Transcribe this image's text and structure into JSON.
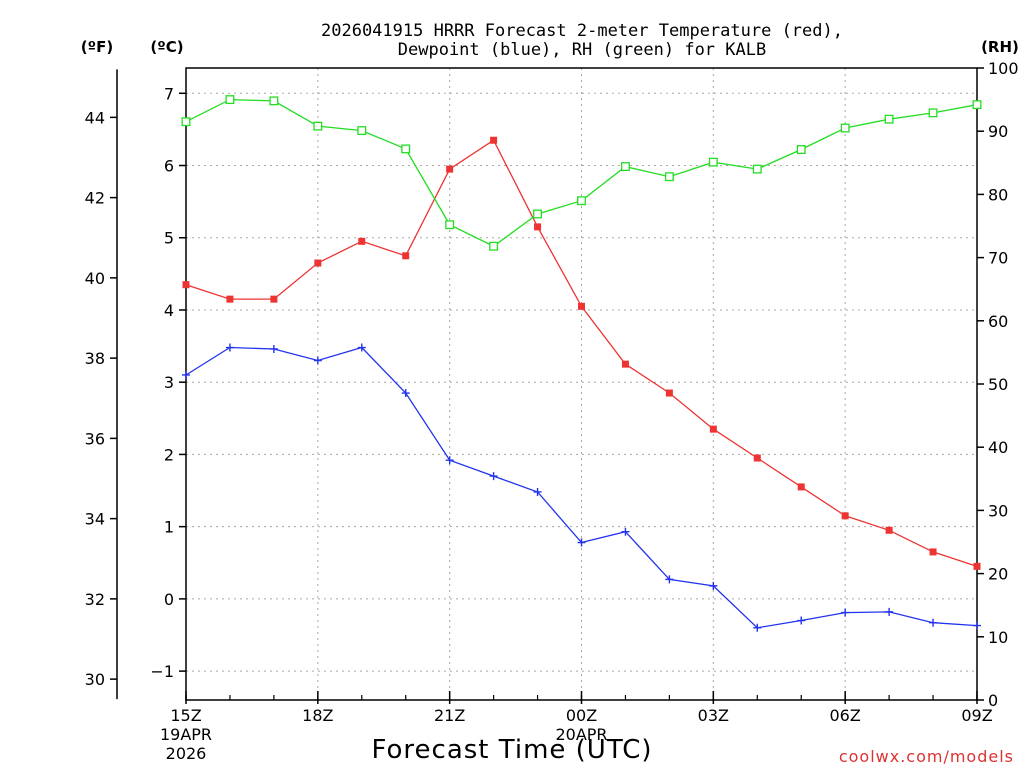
{
  "chart_data": {
    "type": "line",
    "title_line1": "2026041915 HRRR Forecast 2-meter Temperature (red),",
    "title_line2": "Dewpoint (blue), RH (green) for KALB",
    "xlabel": "Forecast Time (UTC)",
    "watermark": "coolwx.com/models",
    "unit_labels": {
      "fahrenheit": "(ºF)",
      "celsius": "(ºC)",
      "rh": "(RH)"
    },
    "x_hours": [
      0,
      1,
      2,
      3,
      4,
      5,
      6,
      7,
      8,
      9,
      10,
      11,
      12,
      13,
      14,
      15,
      16,
      17,
      18
    ],
    "x_ticks": [
      {
        "hour": 0,
        "label": "15Z",
        "sub1": "19APR",
        "sub2": "2026"
      },
      {
        "hour": 3,
        "label": "18Z"
      },
      {
        "hour": 6,
        "label": "21Z"
      },
      {
        "hour": 9,
        "label": "00Z",
        "sub1": "20APR"
      },
      {
        "hour": 12,
        "label": "03Z"
      },
      {
        "hour": 15,
        "label": "06Z"
      },
      {
        "hour": 18,
        "label": "09Z"
      }
    ],
    "celsius_axis": {
      "min": -1.4,
      "max": 7.35,
      "ticks": [
        -1,
        0,
        1,
        2,
        3,
        4,
        5,
        6,
        7
      ]
    },
    "fahrenheit_axis": {
      "ticks": [
        30,
        32,
        34,
        36,
        38,
        40,
        42,
        44
      ]
    },
    "rh_axis": {
      "min": 0,
      "max": 100,
      "ticks": [
        0,
        10,
        20,
        30,
        40,
        50,
        60,
        70,
        80,
        90,
        100
      ]
    },
    "series": [
      {
        "name": "Temperature",
        "units": "C",
        "color": "#ee3333",
        "marker": "filled-square",
        "values": [
          4.35,
          4.15,
          4.15,
          4.65,
          4.95,
          4.75,
          5.95,
          6.35,
          5.15,
          4.05,
          3.25,
          2.85,
          2.35,
          1.95,
          1.55,
          1.15,
          0.95,
          0.65,
          0.45
        ]
      },
      {
        "name": "Dewpoint",
        "units": "C",
        "color": "#2233ee",
        "marker": "plus",
        "values": [
          3.1,
          3.48,
          3.46,
          3.3,
          3.48,
          2.85,
          1.92,
          1.7,
          1.48,
          0.78,
          0.93,
          0.27,
          0.18,
          -0.4,
          -0.3,
          -0.19,
          -0.18,
          -0.33,
          -0.37
        ]
      },
      {
        "name": "RH",
        "units": "%",
        "color": "#22dd22",
        "marker": "open-square",
        "values": [
          91.5,
          95.0,
          94.8,
          90.8,
          90.1,
          87.2,
          75.2,
          71.8,
          76.9,
          79.0,
          84.4,
          82.8,
          85.1,
          84.0,
          87.1,
          90.5,
          91.9,
          92.9,
          94.2
        ]
      }
    ]
  }
}
